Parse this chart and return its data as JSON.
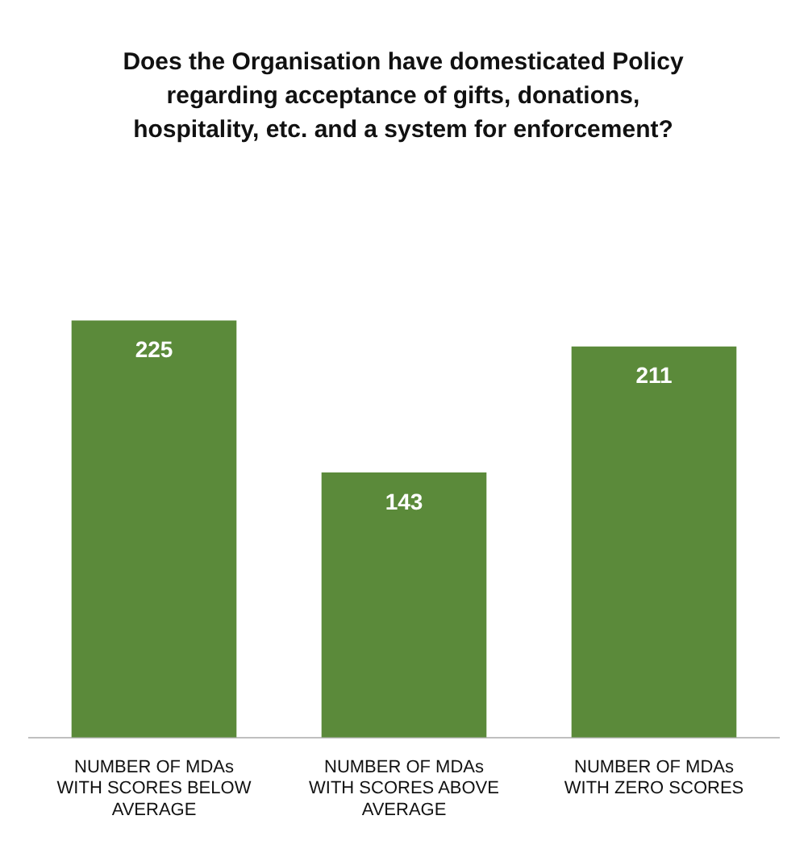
{
  "chart_data": {
    "type": "bar",
    "title": "Does the Organisation have domesticated Policy regarding acceptance of gifts, donations, hospitality, etc. and a system for enforcement?",
    "categories": [
      "NUMBER OF MDAs WITH SCORES BELOW AVERAGE",
      "NUMBER OF MDAs WITH SCORES ABOVE AVERAGE",
      "NUMBER OF MDAs WITH ZERO SCORES"
    ],
    "values": [
      225,
      143,
      211
    ],
    "color": "#5b8a3a",
    "data_labels": true,
    "grid": false,
    "legend": false
  }
}
